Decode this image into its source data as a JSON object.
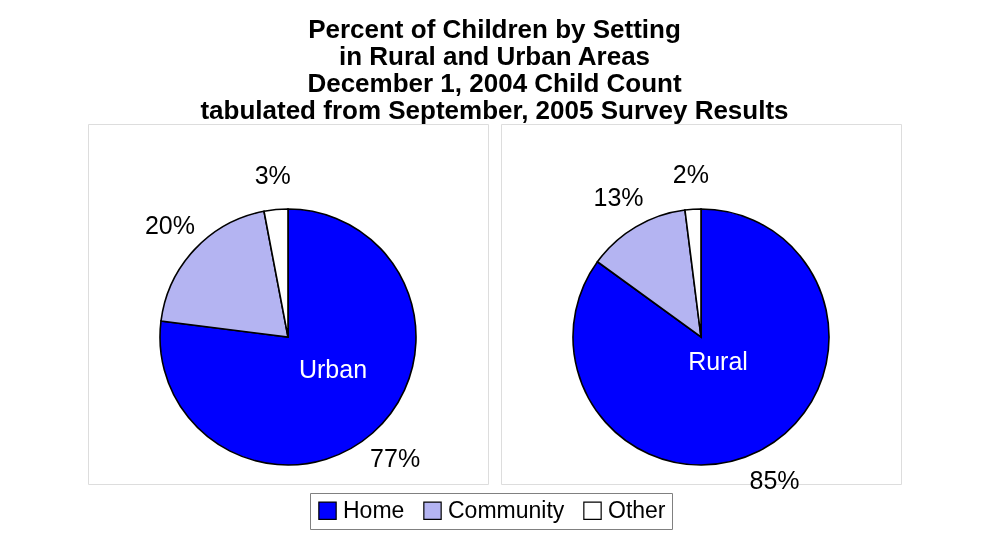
{
  "chart_data": {
    "type": "pie",
    "title": "Percent of Children by Setting\nin Rural and Urban Areas\nDecember 1, 2004 Child Count\ntabulated from September, 2005 Survey Results",
    "categories": [
      "Home",
      "Community",
      "Other"
    ],
    "colors": [
      "#0000ff",
      "#b4b4f2",
      "#ffffff"
    ],
    "series": [
      {
        "name": "Urban",
        "values": [
          77,
          20,
          3
        ],
        "value_labels": [
          "77%",
          "20%",
          "3%"
        ]
      },
      {
        "name": "Rural",
        "values": [
          85,
          13,
          2
        ],
        "value_labels": [
          "85%",
          "13%",
          "2%"
        ]
      }
    ],
    "legend": "bottom"
  }
}
